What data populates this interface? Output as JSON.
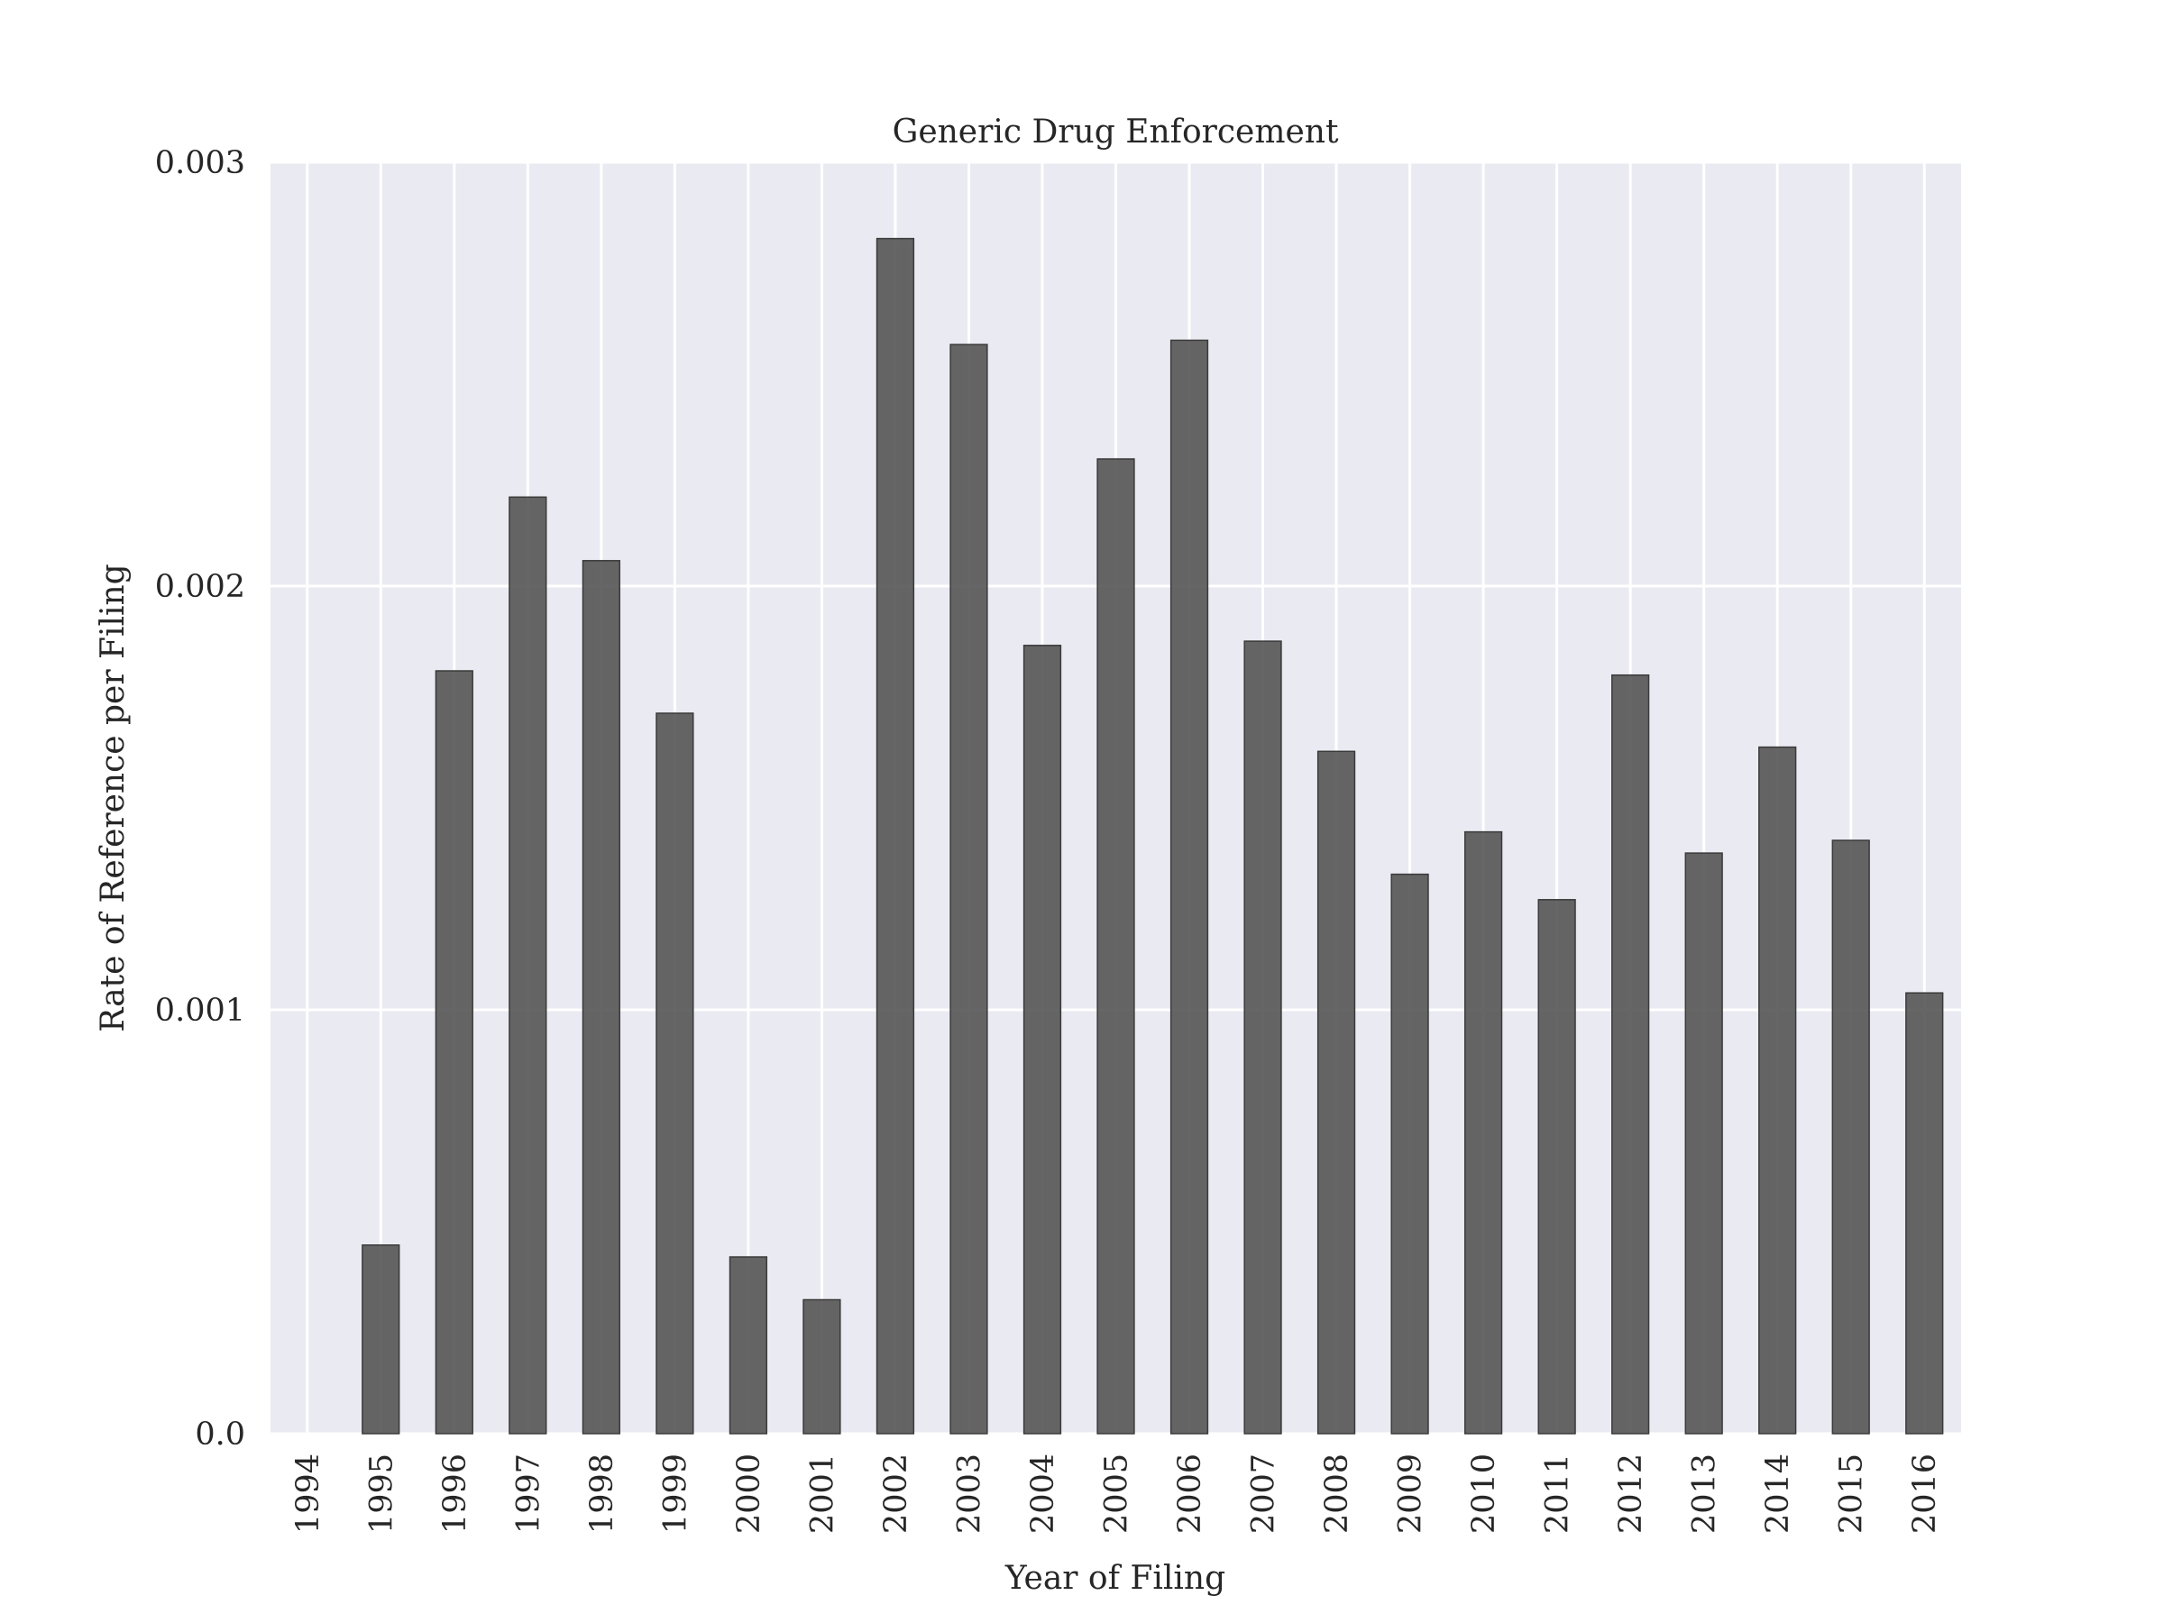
{
  "chart_data": {
    "type": "bar",
    "title": "Generic Drug Enforcement",
    "xlabel": "Year of Filing",
    "ylabel": "Rate of Reference per Filing",
    "categories": [
      "1994",
      "1995",
      "1996",
      "1997",
      "1998",
      "1999",
      "2000",
      "2001",
      "2002",
      "2003",
      "2004",
      "2005",
      "2006",
      "2007",
      "2008",
      "2009",
      "2010",
      "2011",
      "2012",
      "2013",
      "2014",
      "2015",
      "2016"
    ],
    "values": [
      0.0,
      0.000445,
      0.0018,
      0.00221,
      0.00206,
      0.0017,
      0.000417,
      0.000316,
      0.00282,
      0.00257,
      0.00186,
      0.0023,
      0.00258,
      0.00187,
      0.00161,
      0.00132,
      0.00142,
      0.00126,
      0.00179,
      0.00137,
      0.00162,
      0.0014,
      0.00104
    ],
    "ylim": [
      0,
      0.003
    ],
    "yticks": [
      0,
      0.001,
      0.002,
      0.003
    ],
    "ytick_labels": [
      "0.0",
      "0.001",
      "0.002",
      "0.003"
    ],
    "grid": true,
    "colors": {
      "background": "#eaeaf2",
      "grid": "#ffffff",
      "bar": "#555555",
      "bar_edge": "#3a3a3a"
    }
  }
}
